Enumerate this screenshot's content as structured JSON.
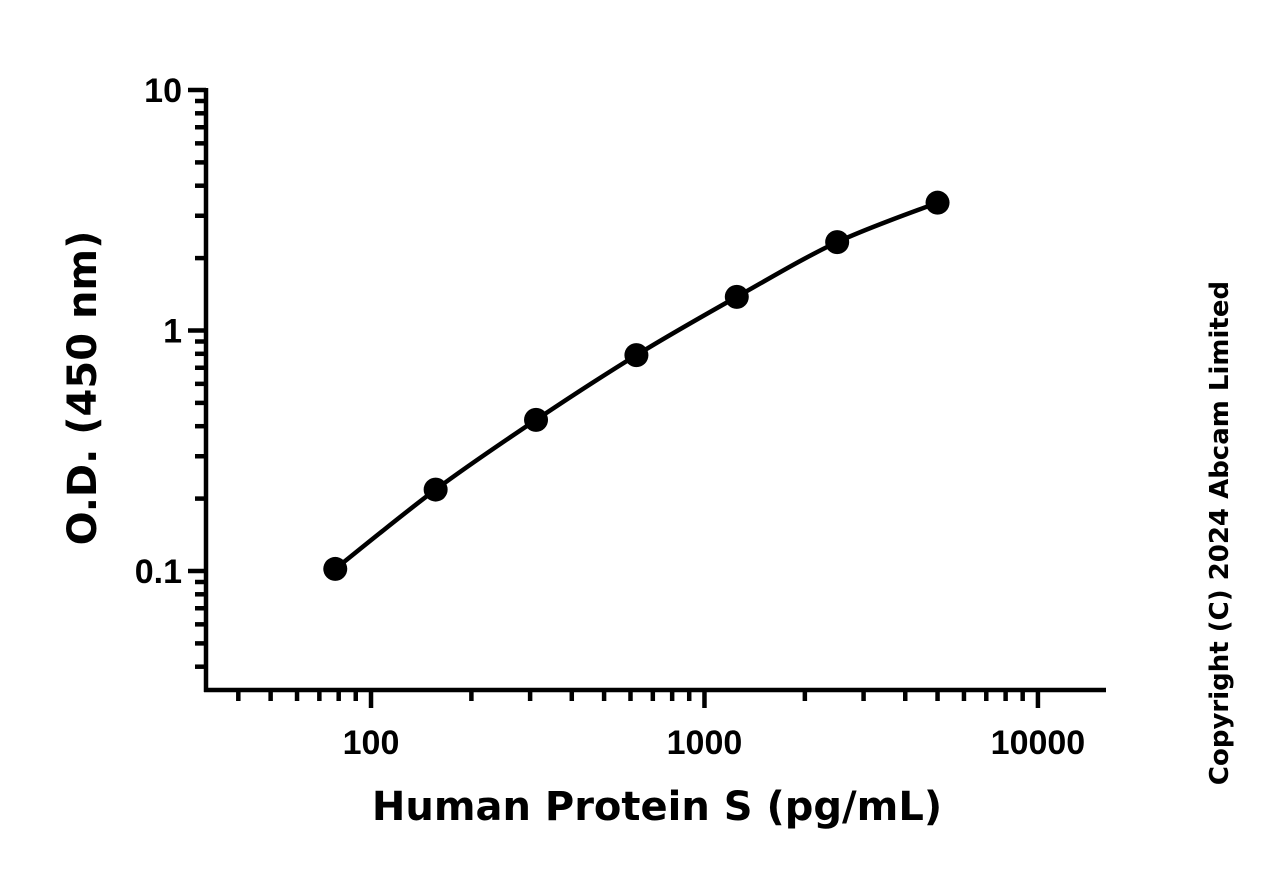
{
  "chart_data": {
    "type": "scatter",
    "xlabel": "Human Protein S (pg/mL)",
    "ylabel": "O.D. (450 nm)",
    "x_scale": "log",
    "y_scale": "log",
    "xlim": [
      32,
      16000
    ],
    "ylim": [
      0.032,
      10
    ],
    "x_ticks": [
      {
        "value": 100,
        "label": "100"
      },
      {
        "value": 1000,
        "label": "1000"
      },
      {
        "value": 10000,
        "label": "10000"
      }
    ],
    "y_ticks": [
      {
        "value": 0.1,
        "label": "0.1"
      },
      {
        "value": 1,
        "label": "1"
      },
      {
        "value": 10,
        "label": "10"
      }
    ],
    "grid": false,
    "series": [
      {
        "x": [
          78.125,
          156.25,
          312.5,
          625,
          1250,
          2500,
          5000
        ],
        "y": [
          0.102,
          0.218,
          0.425,
          0.79,
          1.38,
          2.33,
          3.4
        ],
        "marker": "circle",
        "line": "fitted-curve",
        "color": "#000000"
      }
    ],
    "annotations": [
      {
        "text": "Copyright (C) 2024 Abcam Limited",
        "orientation": "vertical"
      }
    ]
  }
}
